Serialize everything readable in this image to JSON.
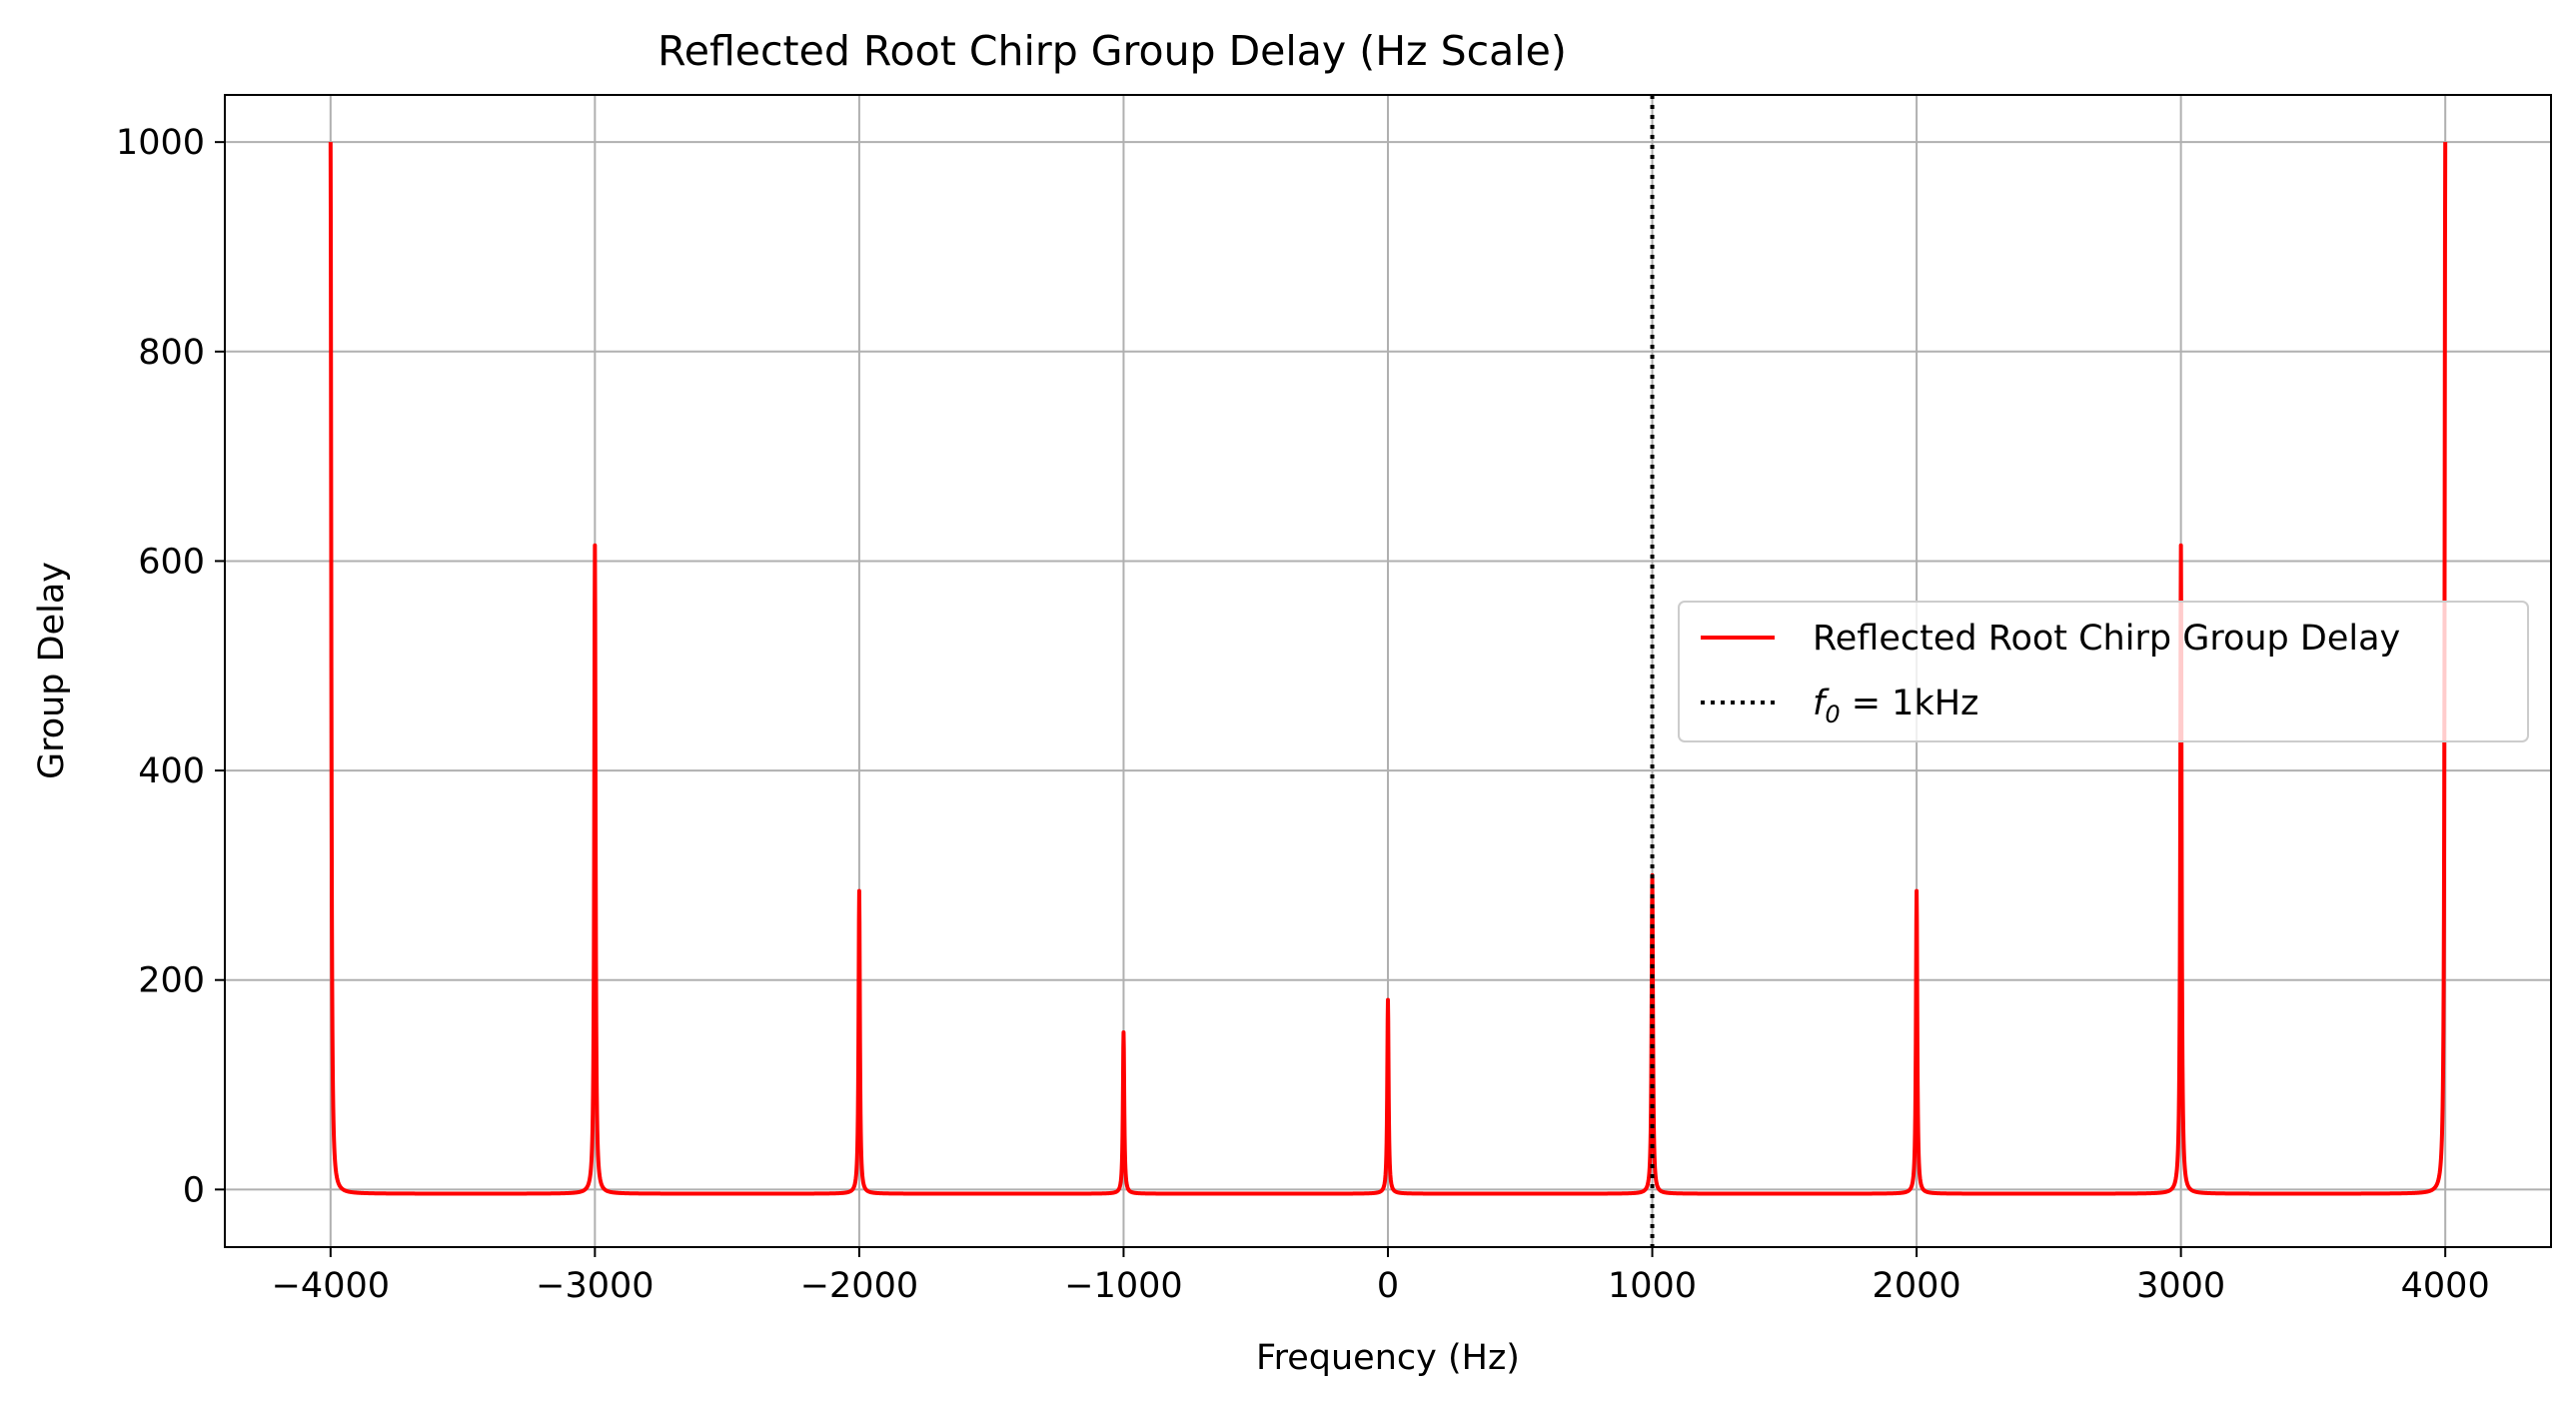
{
  "chart_data": {
    "type": "line",
    "title": "Reflected Root Chirp Group Delay (Hz Scale)",
    "xlabel": "Frequency (Hz)",
    "ylabel": "Group Delay",
    "xlim": [
      -4400,
      4400
    ],
    "ylim": [
      -55,
      1045
    ],
    "xticks": [
      -4000,
      -3000,
      -2000,
      -1000,
      0,
      1000,
      2000,
      3000,
      4000
    ],
    "xtick_labels": [
      "−4000",
      "−3000",
      "−2000",
      "−1000",
      "0",
      "1000",
      "2000",
      "3000",
      "4000"
    ],
    "yticks": [
      0,
      200,
      400,
      600,
      800,
      1000
    ],
    "ytick_labels": [
      "0",
      "200",
      "400",
      "600",
      "800",
      "1000"
    ],
    "grid": true,
    "legend_position": "center-right",
    "baseline": -4,
    "series": [
      {
        "name": "Reflected Root Chirp Group Delay",
        "color": "#ff0000",
        "style": "solid",
        "peaks": [
          {
            "x": -4000,
            "y": 1000
          },
          {
            "x": -3000,
            "y": 615
          },
          {
            "x": -2000,
            "y": 285
          },
          {
            "x": -1000,
            "y": 150
          },
          {
            "x": 0,
            "y": 181
          },
          {
            "x": 1000,
            "y": 300
          },
          {
            "x": 2000,
            "y": 285
          },
          {
            "x": 3000,
            "y": 615
          },
          {
            "x": 4000,
            "y": 1000
          }
        ]
      },
      {
        "name": "f0 = 1kHz",
        "color": "#000000",
        "style": "dotted",
        "type": "vline",
        "x": 1000
      }
    ],
    "legend": {
      "entries": [
        {
          "label": "Reflected Root Chirp Group Delay",
          "color": "#ff0000",
          "style": "solid"
        },
        {
          "label_base": "f",
          "label_sub": "0",
          "label_rest": " = 1kHz",
          "color": "#000000",
          "style": "dotted"
        }
      ]
    }
  }
}
